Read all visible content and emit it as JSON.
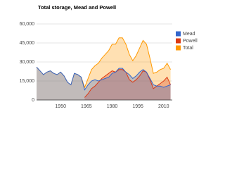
{
  "chart_data": {
    "type": "area",
    "title": "Total storage, Mead and Powell",
    "x": [
      1936,
      1938,
      1940,
      1942,
      1944,
      1946,
      1948,
      1950,
      1952,
      1954,
      1956,
      1958,
      1960,
      1962,
      1964,
      1966,
      1968,
      1970,
      1972,
      1974,
      1976,
      1978,
      1980,
      1982,
      1984,
      1986,
      1988,
      1990,
      1992,
      1994,
      1996,
      1998,
      2000,
      2002,
      2004,
      2006,
      2008,
      2010,
      2012,
      2014
    ],
    "series": [
      {
        "name": "Mead",
        "color": "#3366cc",
        "values": [
          26000,
          23000,
          20000,
          22000,
          23000,
          21000,
          20000,
          22000,
          19000,
          14000,
          12000,
          21000,
          20000,
          18000,
          8000,
          12000,
          15000,
          16000,
          15000,
          16000,
          17000,
          18000,
          21000,
          22000,
          25000,
          25000,
          22000,
          20000,
          17000,
          19000,
          22000,
          24000,
          22000,
          17000,
          12000,
          11000,
          11000,
          10000,
          11000,
          12000
        ]
      },
      {
        "name": "Powell",
        "color": "#dc3912",
        "values": [
          null,
          null,
          null,
          null,
          null,
          null,
          null,
          null,
          null,
          null,
          null,
          null,
          null,
          null,
          2000,
          5000,
          9000,
          11000,
          14000,
          17000,
          19000,
          21000,
          23000,
          22000,
          24000,
          24000,
          22000,
          16000,
          14000,
          16000,
          19000,
          23000,
          22000,
          16000,
          9000,
          11000,
          13000,
          15000,
          18000,
          12000
        ]
      },
      {
        "name": "Total",
        "color": "#ff9900",
        "values": [
          26000,
          23000,
          20000,
          22000,
          23000,
          21000,
          20000,
          22000,
          19000,
          14000,
          12000,
          21000,
          20000,
          18000,
          10000,
          17000,
          24000,
          27000,
          29000,
          33000,
          36000,
          39000,
          44000,
          44000,
          49000,
          49000,
          44000,
          36000,
          31000,
          35000,
          41000,
          47000,
          44000,
          33000,
          21000,
          22000,
          24000,
          25000,
          29000,
          24000
        ]
      }
    ],
    "xlim": [
      1936,
      2015
    ],
    "xticks": [
      1950,
      1965,
      1980,
      1995,
      2010
    ],
    "ylim": [
      0,
      60000
    ],
    "yticks": [
      0,
      {
        "value": 15000,
        "label": "15,000"
      },
      {
        "value": 30000,
        "label": "30,000"
      },
      {
        "value": 45000,
        "label": "45,000"
      },
      {
        "value": 60000,
        "label": "60,000"
      }
    ],
    "grid": true,
    "legend": "right"
  }
}
